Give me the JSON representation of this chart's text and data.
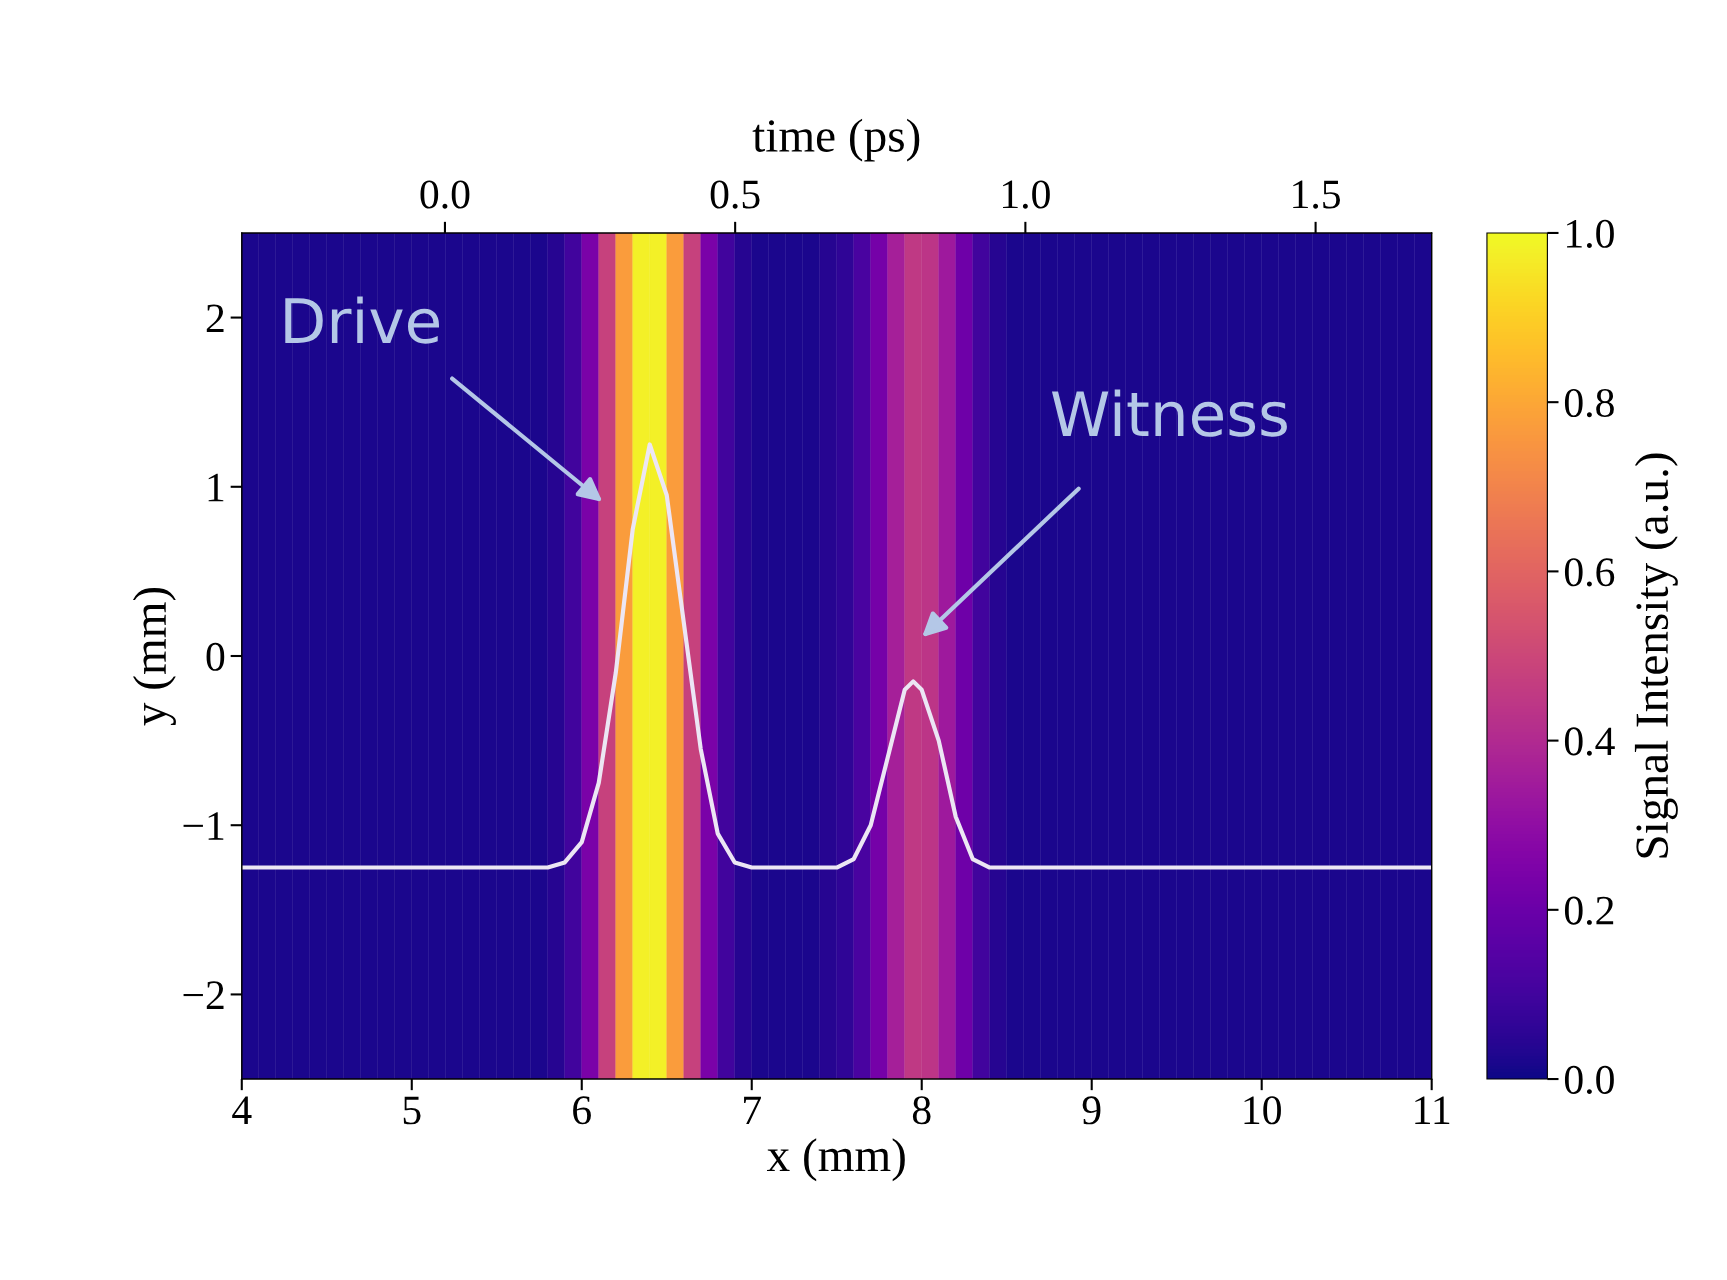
{
  "chart_data": {
    "type": "heatmap",
    "xlabel": "x (mm)",
    "ylabel": "y (mm)",
    "x2label": "time (ps)",
    "clabel": "Signal Intensity (a.u.)",
    "x": [
      4.05,
      4.15,
      4.25,
      4.35,
      4.45,
      4.55,
      4.65,
      4.75,
      4.85,
      4.95,
      5.05,
      5.15,
      5.25,
      5.35,
      5.45,
      5.55,
      5.65,
      5.75,
      5.85,
      5.95,
      6.05,
      6.15,
      6.25,
      6.35,
      6.45,
      6.55,
      6.65,
      6.75,
      6.85,
      6.95,
      7.05,
      7.15,
      7.25,
      7.35,
      7.45,
      7.55,
      7.65,
      7.75,
      7.85,
      7.95,
      8.05,
      8.15,
      8.25,
      8.35,
      8.45,
      8.55,
      8.65,
      8.75,
      8.85,
      8.95,
      9.05,
      9.15,
      9.25,
      9.35,
      9.45,
      9.55,
      9.65,
      9.75,
      9.85,
      9.95,
      10.05,
      10.15,
      10.25,
      10.35,
      10.45,
      10.55,
      10.65,
      10.75,
      10.85,
      10.95
    ],
    "cells": [
      [
        0.02,
        0.02,
        0.02,
        0.02,
        0.02,
        0.02,
        0.02,
        0.02,
        0.02,
        0.02,
        0.02,
        0.02,
        0.02,
        0.02,
        0.02,
        0.02,
        0.02,
        0.02,
        0.04,
        0.1,
        0.24,
        0.48,
        0.77,
        0.98,
        0.98,
        0.77,
        0.48,
        0.24,
        0.1,
        0.04,
        0.02,
        0.02,
        0.02,
        0.02,
        0.04,
        0.06,
        0.12,
        0.23,
        0.36,
        0.45,
        0.44,
        0.34,
        0.21,
        0.1,
        0.04,
        0.02,
        0.02,
        0.02,
        0.02,
        0.02,
        0.02,
        0.02,
        0.02,
        0.02,
        0.02,
        0.02,
        0.02,
        0.02,
        0.02,
        0.02,
        0.02,
        0.02,
        0.02,
        0.02,
        0.02,
        0.02,
        0.02,
        0.02,
        0.02,
        0.02
      ]
    ],
    "series": [
      {
        "type": "line",
        "color": "#ece6f4",
        "x": [
          4,
          5.8,
          5.9,
          6.0,
          6.1,
          6.2,
          6.3,
          6.4,
          6.5,
          6.6,
          6.7,
          6.8,
          6.9,
          7.0,
          7.5,
          7.6,
          7.7,
          7.8,
          7.9,
          7.95,
          8.0,
          8.1,
          8.2,
          8.3,
          8.4,
          11
        ],
        "values": [
          -1.25,
          -1.25,
          -1.22,
          -1.1,
          -0.75,
          -0.1,
          0.75,
          1.25,
          0.95,
          0.2,
          -0.55,
          -1.05,
          -1.22,
          -1.25,
          -1.25,
          -1.2,
          -1.0,
          -0.6,
          -0.2,
          -0.15,
          -0.2,
          -0.5,
          -0.95,
          -1.2,
          -1.25,
          -1.25
        ]
      }
    ],
    "xlim": [
      4,
      11
    ],
    "xticks": [
      4,
      5,
      6,
      7,
      8,
      9,
      10,
      11
    ],
    "ylim": [
      -2.5,
      2.5
    ],
    "yticks": [
      {
        "value": -2,
        "label": "−2"
      },
      {
        "value": -1,
        "label": "−1"
      },
      0,
      1,
      2
    ],
    "x2lim": [
      -0.35,
      1.7
    ],
    "x2ticks": [
      {
        "value": 0,
        "label": "0.0"
      },
      {
        "value": 0.5,
        "label": "0.5"
      },
      {
        "value": 1.0,
        "label": "1.0"
      },
      {
        "value": 1.5,
        "label": "1.5"
      }
    ],
    "clim": [
      0,
      1
    ],
    "cticks": [
      {
        "value": 0,
        "label": "0.0"
      },
      {
        "value": 0.2,
        "label": "0.2"
      },
      {
        "value": 0.4,
        "label": "0.4"
      },
      {
        "value": 0.6,
        "label": "0.6"
      },
      {
        "value": 0.8,
        "label": "0.8"
      },
      {
        "value": 1.0,
        "label": "1.0"
      }
    ],
    "annotations": [
      "Drive",
      "Witness"
    ],
    "grid": false
  }
}
